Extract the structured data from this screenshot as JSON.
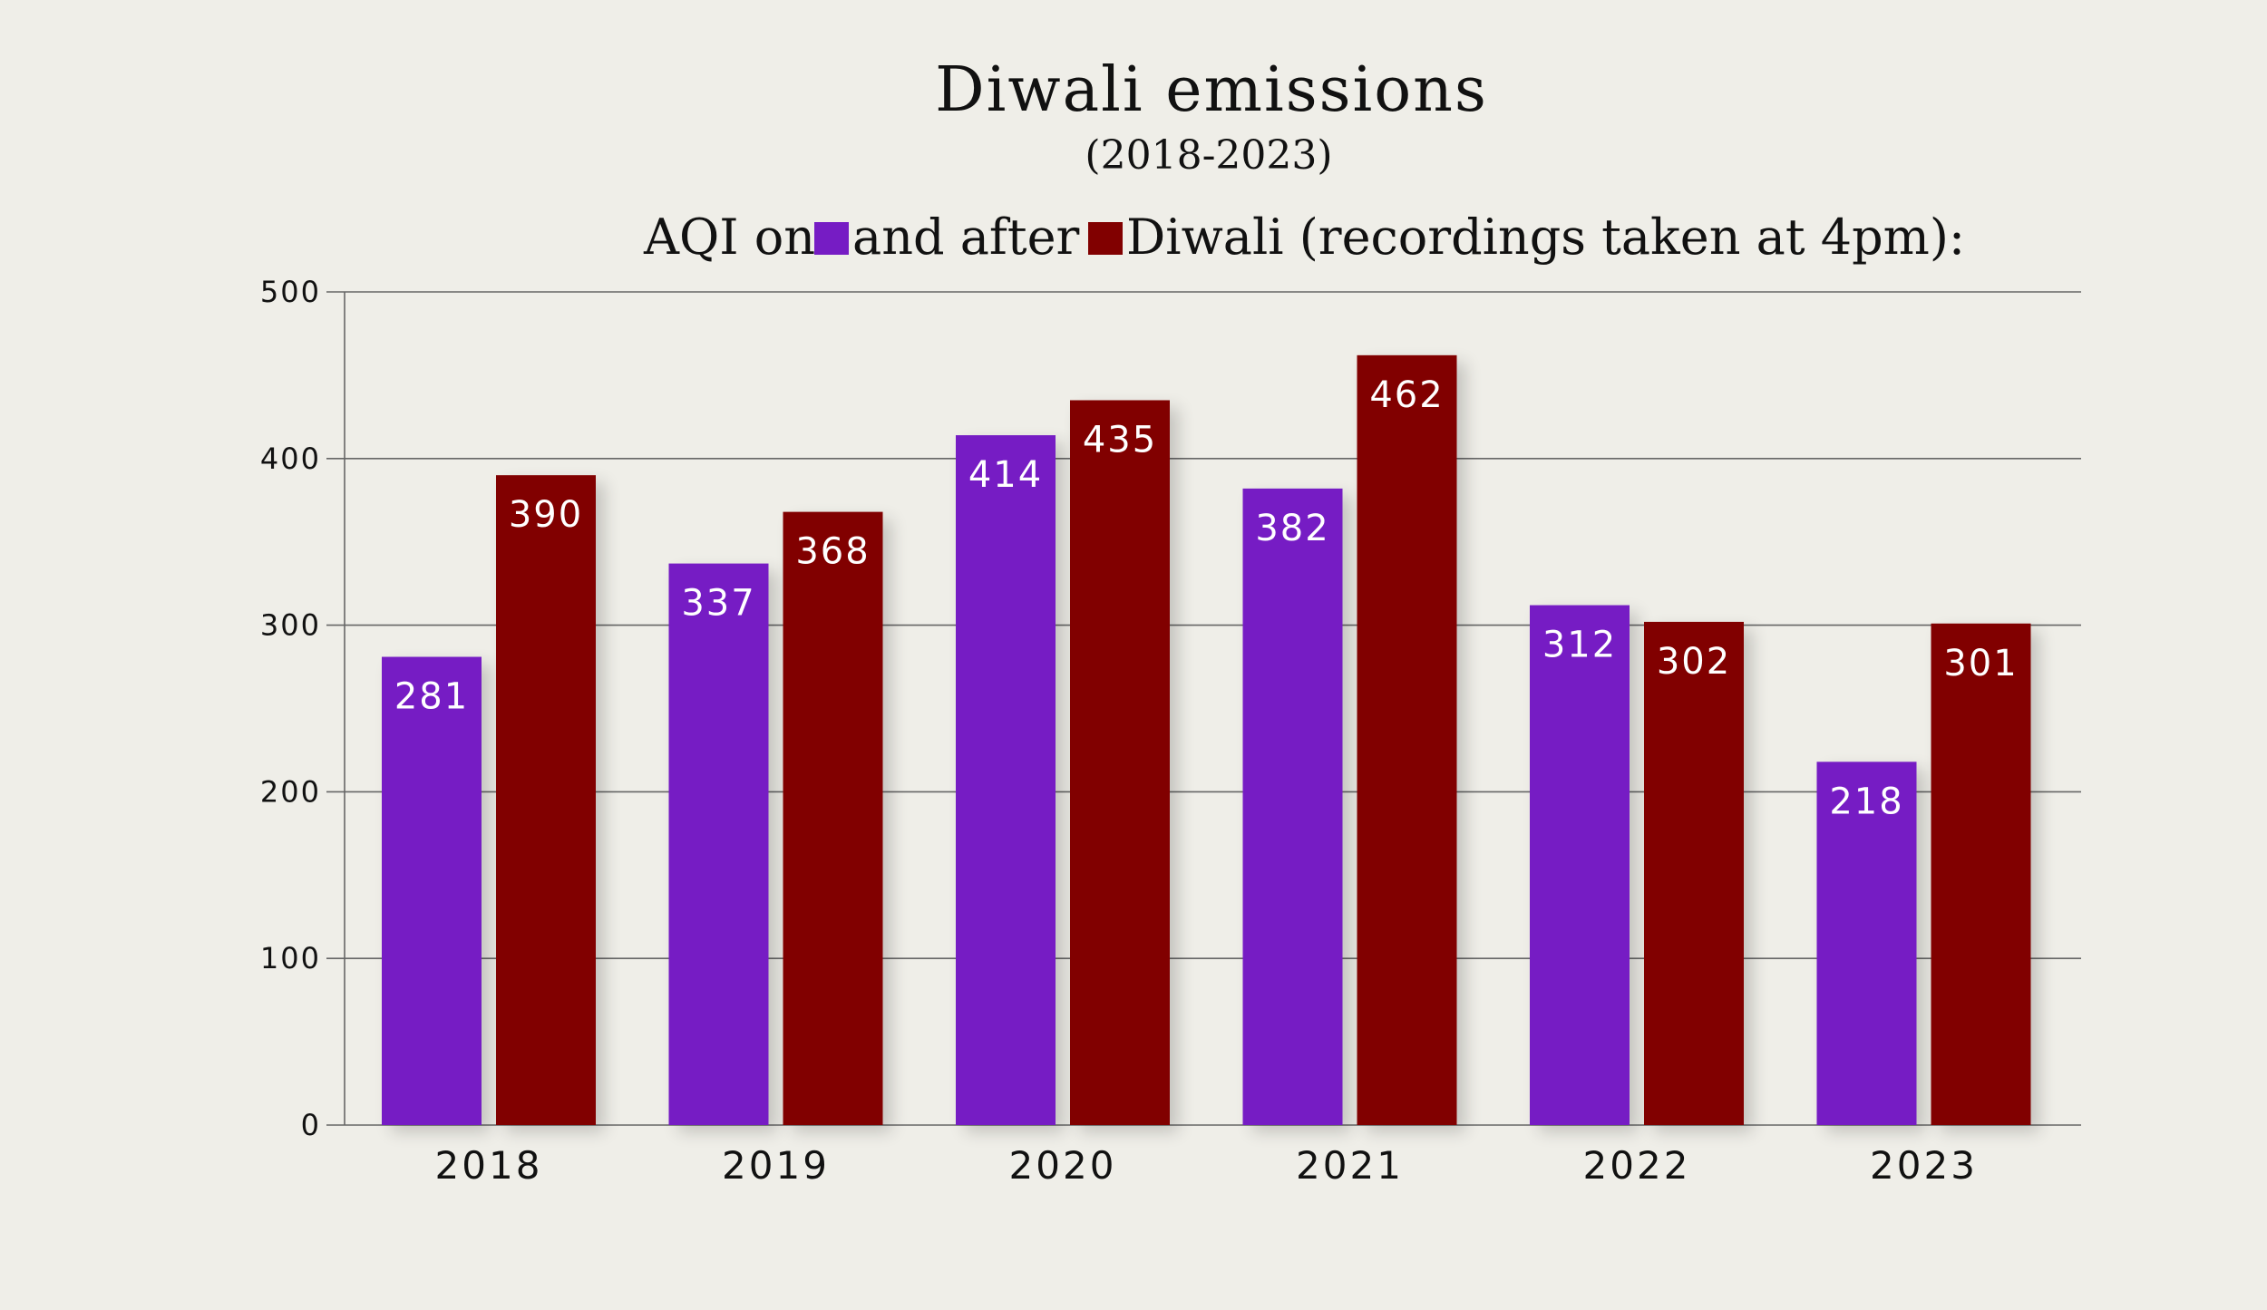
{
  "chart_data": {
    "type": "bar",
    "title": "Diwali emissions",
    "subtitle": "(2018-2023)",
    "legend": {
      "prefix": "AQI on",
      "middle": " and after",
      "suffix": " Diwali (recordings taken at 4pm):"
    },
    "categories": [
      "2018",
      "2019",
      "2020",
      "2021",
      "2022",
      "2023"
    ],
    "series": [
      {
        "name": "on",
        "color": "#761cc4",
        "values": [
          281,
          337,
          414,
          382,
          312,
          218
        ]
      },
      {
        "name": "after",
        "color": "#810000",
        "values": [
          390,
          368,
          435,
          462,
          302,
          301
        ]
      }
    ],
    "ylim": [
      0,
      500
    ],
    "yticks": [
      0,
      100,
      200,
      300,
      400,
      500
    ],
    "grid": true,
    "xlabel": "",
    "ylabel": ""
  },
  "colors": {
    "background": "#efeee8",
    "on_diwali": "#761cc4",
    "after_diwali": "#810000",
    "gridline": "#666666",
    "value_label": "#ffffff"
  }
}
